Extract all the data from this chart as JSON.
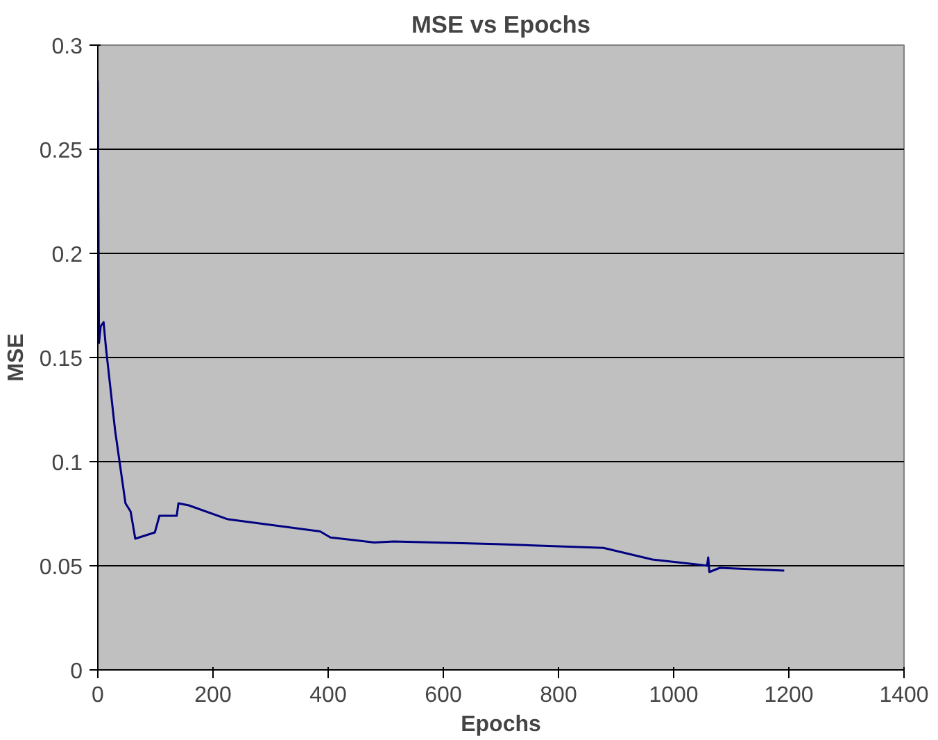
{
  "chart_data": {
    "type": "line",
    "title": "MSE vs Epochs",
    "xlabel": "Epochs",
    "ylabel": "MSE",
    "series": [
      {
        "color": "#000080",
        "x": [
          0,
          2,
          5,
          10,
          14,
          30,
          48,
          57,
          65,
          99,
          107,
          137,
          140,
          158,
          226,
          386,
          404,
          480,
          514,
          691,
          878,
          963,
          1047,
          1058,
          1060,
          1062,
          1080,
          1192
        ],
        "values": [
          0.283,
          0.157,
          0.165,
          0.167,
          0.155,
          0.115,
          0.08,
          0.076,
          0.063,
          0.066,
          0.074,
          0.074,
          0.08,
          0.079,
          0.0723,
          0.0665,
          0.0636,
          0.0612,
          0.0617,
          0.0604,
          0.0586,
          0.053,
          0.0504,
          0.05,
          0.054,
          0.047,
          0.049,
          0.0477
        ]
      }
    ],
    "xlim": [
      0,
      1400
    ],
    "xticks": [
      0,
      200,
      400,
      600,
      800,
      1000,
      1200,
      1400
    ],
    "ylim": [
      0,
      0.3
    ],
    "yticks": [
      0,
      0.05,
      0.1,
      0.15,
      0.2,
      0.25,
      0.3
    ],
    "grid": "y"
  }
}
